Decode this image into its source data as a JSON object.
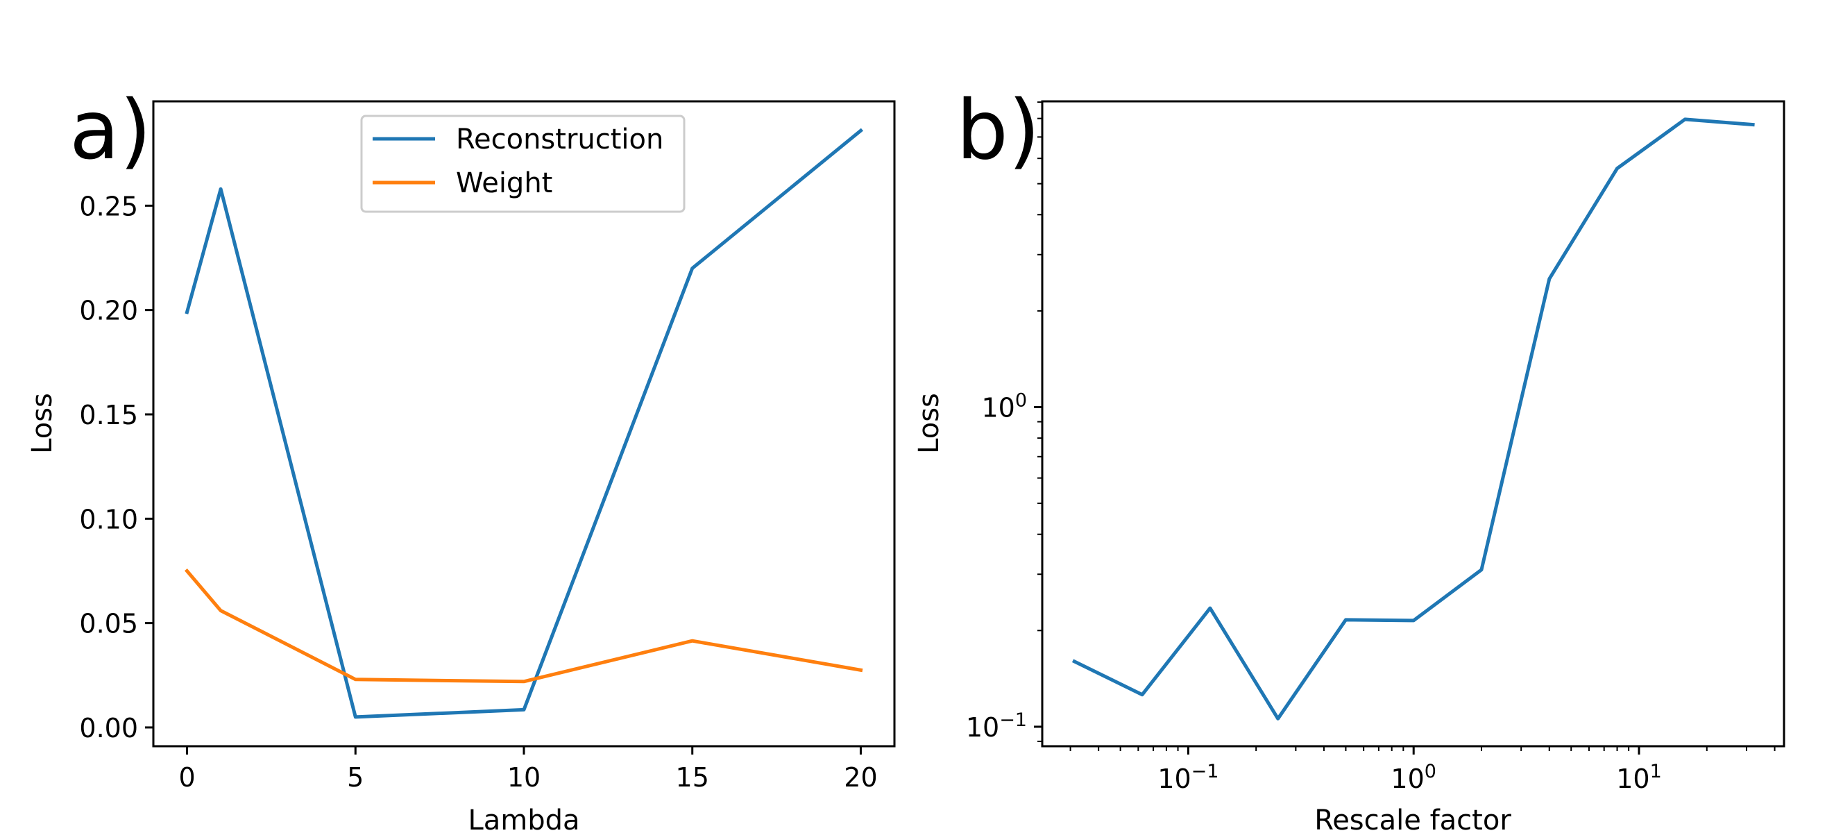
{
  "chart_data": [
    {
      "type": "line",
      "panel_label": "a)",
      "xlabel": "Lambda",
      "ylabel": "Loss",
      "x": [
        0,
        1,
        5,
        10,
        15,
        20
      ],
      "xlim": [
        -1,
        21
      ],
      "ylim": [
        -0.009,
        0.3
      ],
      "xticks": [
        0,
        5,
        10,
        15,
        20
      ],
      "xtick_labels": [
        "0",
        "5",
        "10",
        "15",
        "20"
      ],
      "yticks": [
        0.0,
        0.05,
        0.1,
        0.15,
        0.2,
        0.25
      ],
      "ytick_labels": [
        "0.00",
        "0.05",
        "0.10",
        "0.15",
        "0.20",
        "0.25"
      ],
      "grid": false,
      "legend_position": "top-center",
      "series": [
        {
          "name": "Reconstruction",
          "color": "#1f77b4",
          "values": [
            0.199,
            0.258,
            0.005,
            0.0085,
            0.22,
            0.286
          ]
        },
        {
          "name": "Weight",
          "color": "#ff7f0e",
          "values": [
            0.075,
            0.056,
            0.023,
            0.022,
            0.0415,
            0.0275
          ]
        }
      ]
    },
    {
      "type": "line",
      "panel_label": "b)",
      "xlabel": "Rescale factor",
      "ylabel": "Loss",
      "xscale": "log",
      "yscale": "log",
      "x": [
        0.03125,
        0.0625,
        0.125,
        0.25,
        0.5,
        1,
        2,
        4,
        8,
        16,
        32
      ],
      "xlim": [
        0.0225,
        44
      ],
      "ylim": [
        0.0869,
        9.05
      ],
      "xticks": [
        0.1,
        1,
        10
      ],
      "xtick_labels": [
        {
          "base": "10",
          "exp": "−1"
        },
        {
          "base": "10",
          "exp": "0"
        },
        {
          "base": "10",
          "exp": "1"
        }
      ],
      "yticks": [
        0.1,
        1
      ],
      "ytick_labels": [
        {
          "base": "10",
          "exp": "−1"
        },
        {
          "base": "10",
          "exp": "0"
        }
      ],
      "grid": false,
      "series": [
        {
          "color": "#1f77b4",
          "values": [
            0.16,
            0.126,
            0.235,
            0.106,
            0.216,
            0.215,
            0.31,
            2.52,
            5.58,
            7.95,
            7.65
          ]
        }
      ]
    }
  ]
}
